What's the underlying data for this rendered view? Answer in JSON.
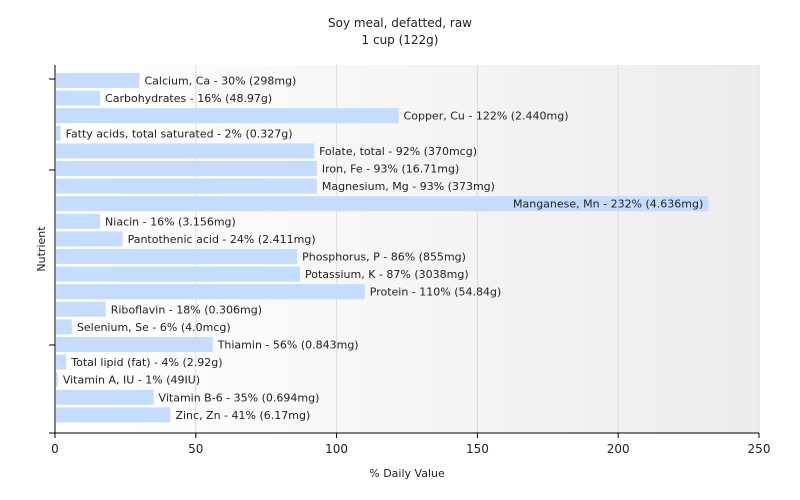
{
  "chart_data": {
    "type": "bar",
    "orientation": "horizontal",
    "title": "Soy meal, defatted, raw",
    "subtitle": "1 cup (122g)",
    "xlabel": "% Daily Value",
    "ylabel": "Nutrient",
    "xlim": [
      0,
      250
    ],
    "xticks": [
      "0",
      "50",
      "100",
      "150",
      "200",
      "250"
    ],
    "grid": true,
    "bar_color": "#c6dcff",
    "categories": [
      "Calcium, Ca",
      "Carbohydrates",
      "Copper, Cu",
      "Fatty acids, total saturated",
      "Folate, total",
      "Iron, Fe",
      "Magnesium, Mg",
      "Manganese, Mn",
      "Niacin",
      "Pantothenic acid",
      "Phosphorus, P",
      "Potassium, K",
      "Protein",
      "Riboflavin",
      "Selenium, Se",
      "Thiamin",
      "Total lipid (fat)",
      "Vitamin A, IU",
      "Vitamin B-6",
      "Zinc, Zn"
    ],
    "values": [
      30,
      16,
      122,
      2,
      92,
      93,
      93,
      232,
      16,
      24,
      86,
      87,
      110,
      18,
      6,
      56,
      4,
      1,
      35,
      41
    ],
    "labels": [
      "Calcium, Ca - 30% (298mg)",
      "Carbohydrates - 16% (48.97g)",
      "Copper, Cu - 122% (2.440mg)",
      "Fatty acids, total saturated - 2% (0.327g)",
      "Folate, total - 92% (370mcg)",
      "Iron, Fe - 93% (16.71mg)",
      "Magnesium, Mg - 93% (373mg)",
      "Manganese, Mn - 232% (4.636mg)",
      "Niacin - 16% (3.156mg)",
      "Pantothenic acid - 24% (2.411mg)",
      "Phosphorus, P - 86% (855mg)",
      "Potassium, K - 87% (3038mg)",
      "Protein - 110% (54.84g)",
      "Riboflavin - 18% (0.306mg)",
      "Selenium, Se - 6% (4.0mcg)",
      "Thiamin - 56% (0.843mg)",
      "Total lipid (fat) - 4% (2.92g)",
      "Vitamin A, IU - 1% (49IU)",
      "Vitamin B-6 - 35% (0.694mg)",
      "Zinc, Zn - 41% (6.17mg)"
    ]
  }
}
